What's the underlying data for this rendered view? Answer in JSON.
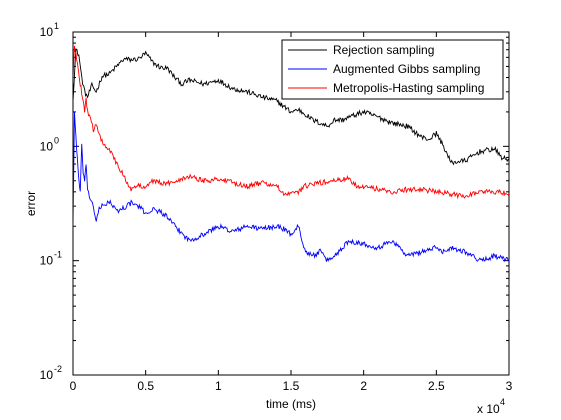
{
  "chart_data": {
    "type": "line",
    "title": "",
    "xlabel": "time (ms)",
    "ylabel": "error",
    "x_multiplier_label": {
      "base": "x 10",
      "exponent": "4"
    },
    "xlim": [
      0,
      30000
    ],
    "ylim": [
      0.01,
      10
    ],
    "yscale": "log",
    "grid": false,
    "legend_position": "top-right",
    "x_ticks": [
      {
        "value": 0,
        "label": "0"
      },
      {
        "value": 5000,
        "label": "0.5"
      },
      {
        "value": 10000,
        "label": "1"
      },
      {
        "value": 15000,
        "label": "1.5"
      },
      {
        "value": 20000,
        "label": "2"
      },
      {
        "value": 25000,
        "label": "2.5"
      },
      {
        "value": 30000,
        "label": "3"
      }
    ],
    "y_ticks": [
      {
        "value": 0.01,
        "base": "10",
        "exp": "-2"
      },
      {
        "value": 0.1,
        "base": "10",
        "exp": "-1"
      },
      {
        "value": 1,
        "base": "10",
        "exp": "0"
      },
      {
        "value": 10,
        "base": "10",
        "exp": "1"
      }
    ],
    "series": [
      {
        "name": "Rejection sampling",
        "color": "#000000",
        "x": [
          0,
          200,
          400,
          600,
          800,
          1000,
          1300,
          1600,
          2000,
          2500,
          3000,
          3500,
          4000,
          4500,
          5000,
          5500,
          6000,
          6500,
          7000,
          7500,
          8000,
          9000,
          10000,
          11000,
          12000,
          13000,
          14000,
          15000,
          15500,
          16000,
          16500,
          17000,
          17500,
          18000,
          18500,
          19000,
          20000,
          21000,
          22000,
          23000,
          24000,
          24500,
          25000,
          25500,
          26000,
          27000,
          28000,
          29000,
          29500,
          30000
        ],
        "y": [
          2.6,
          7.0,
          6.3,
          4.0,
          3.0,
          2.7,
          3.4,
          3.0,
          4.1,
          4.3,
          5.0,
          5.8,
          5.7,
          5.8,
          6.5,
          5.4,
          4.9,
          4.8,
          4.0,
          3.5,
          3.8,
          3.5,
          3.8,
          3.2,
          3.0,
          2.7,
          2.5,
          2.0,
          2.1,
          1.9,
          1.7,
          1.6,
          1.5,
          1.7,
          1.7,
          1.8,
          2.0,
          1.8,
          1.6,
          1.5,
          1.2,
          1.15,
          1.3,
          1.0,
          0.72,
          0.75,
          0.9,
          0.95,
          0.8,
          0.75
        ]
      },
      {
        "name": "Augmented Gibbs sampling",
        "color": "#0000ff",
        "x": [
          0,
          100,
          200,
          300,
          400,
          500,
          600,
          700,
          800,
          900,
          1000,
          1200,
          1400,
          1600,
          1800,
          2000,
          2500,
          3000,
          3500,
          4000,
          4500,
          5000,
          5500,
          6000,
          6500,
          7000,
          8000,
          9000,
          10000,
          11000,
          12000,
          13000,
          14000,
          14500,
          15000,
          15500,
          16000,
          16500,
          17000,
          17500,
          18000,
          19000,
          20000,
          21000,
          22000,
          23000,
          24000,
          25000,
          25500,
          26000,
          27000,
          28000,
          29000,
          30000
        ],
        "y": [
          0.2,
          2.0,
          1.2,
          0.8,
          0.5,
          0.4,
          1.0,
          0.6,
          0.5,
          0.7,
          0.4,
          0.35,
          0.3,
          0.22,
          0.28,
          0.3,
          0.33,
          0.27,
          0.29,
          0.32,
          0.3,
          0.26,
          0.28,
          0.27,
          0.24,
          0.2,
          0.15,
          0.17,
          0.2,
          0.18,
          0.2,
          0.19,
          0.2,
          0.19,
          0.17,
          0.2,
          0.12,
          0.11,
          0.12,
          0.1,
          0.11,
          0.15,
          0.14,
          0.13,
          0.15,
          0.11,
          0.12,
          0.13,
          0.12,
          0.13,
          0.12,
          0.1,
          0.11,
          0.1
        ]
      },
      {
        "name": "Metropolis-Hasting sampling",
        "color": "#ff0000",
        "x": [
          0,
          100,
          200,
          300,
          400,
          500,
          600,
          700,
          800,
          900,
          1000,
          1200,
          1400,
          1600,
          1800,
          2000,
          2500,
          3000,
          3500,
          4000,
          4500,
          5000,
          5500,
          6000,
          6500,
          7000,
          8000,
          9000,
          10000,
          11000,
          12000,
          13000,
          14000,
          14500,
          15000,
          15500,
          16000,
          17000,
          18000,
          19000,
          19500,
          20000,
          21000,
          22000,
          23000,
          24000,
          25000,
          26000,
          27000,
          28000,
          29000,
          30000
        ],
        "y": [
          3.5,
          7.5,
          6.5,
          5.5,
          4.5,
          3.5,
          3.0,
          2.5,
          2.0,
          2.7,
          2.0,
          1.7,
          1.4,
          1.6,
          1.3,
          1.1,
          0.95,
          0.7,
          0.55,
          0.42,
          0.45,
          0.45,
          0.5,
          0.48,
          0.47,
          0.5,
          0.55,
          0.5,
          0.52,
          0.48,
          0.45,
          0.48,
          0.45,
          0.38,
          0.38,
          0.4,
          0.45,
          0.48,
          0.5,
          0.52,
          0.45,
          0.45,
          0.42,
          0.4,
          0.42,
          0.42,
          0.4,
          0.38,
          0.37,
          0.4,
          0.4,
          0.39
        ]
      }
    ]
  }
}
